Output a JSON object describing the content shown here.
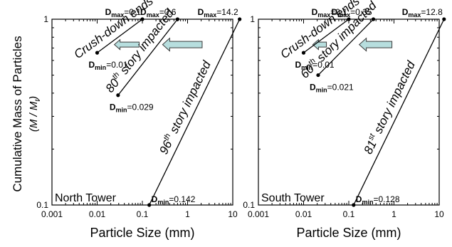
{
  "colors": {
    "arrow_fill": "#b7dede",
    "arrow_stroke": "#3a3a3a",
    "ink": "#000000"
  },
  "y_axis_title": "Cumulative Mass of Particles",
  "y_axis_subtitle": "(M / M_t)",
  "chart_data": [
    {
      "type": "line",
      "scale": {
        "x": "log",
        "y": "log"
      },
      "xlim": [
        0.001,
        10
      ],
      "ylim": [
        0.1,
        1
      ],
      "xticks": [
        "0.001",
        "0.01",
        "0.1",
        "1",
        "10"
      ],
      "yticks": [
        "1",
        "0.1"
      ],
      "xlabel": "Particle Size (mm)",
      "panel_title": "North Tower",
      "series": [
        {
          "name": "Crush-down ends",
          "sup": "",
          "x": [
            0.01,
            0.1
          ],
          "y": [
            0.66,
            1.0
          ],
          "dmin": "0.01",
          "dmax": "0.1"
        },
        {
          "name": "80th story impacted",
          "base": "80",
          "sup": "th",
          "rest": " story impacted",
          "x": [
            0.029,
            0.6
          ],
          "y": [
            0.39,
            1.0
          ],
          "dmin": "0.029",
          "dmax": "0.6"
        },
        {
          "name": "96th story impacted",
          "base": "96",
          "sup": "th",
          "rest": " story impacted",
          "x": [
            0.142,
            14.2
          ],
          "y": [
            0.1,
            1.0
          ],
          "dmin": "0.142",
          "dmax": "14.2"
        }
      ],
      "arrows": [
        {
          "x_from": 0.085,
          "x_to": 0.024,
          "y": 0.73,
          "size": "small"
        },
        {
          "x_from": 2.1,
          "x_to": 0.28,
          "y": 0.73,
          "size": "large"
        }
      ]
    },
    {
      "type": "line",
      "scale": {
        "x": "log",
        "y": "log"
      },
      "xlim": [
        0.001,
        10
      ],
      "ylim": [
        0.1,
        1
      ],
      "xticks": [
        "0.001",
        "0.01",
        "0.1",
        "1",
        "10"
      ],
      "yticks": [
        "1",
        "0.1"
      ],
      "xlabel": "Particle Size (mm)",
      "panel_title": "South Tower",
      "series": [
        {
          "name": "Crush-down ends",
          "sup": "",
          "x": [
            0.01,
            0.1
          ],
          "y": [
            0.66,
            1.0
          ],
          "dmin": "0.01",
          "dmax": "0.1"
        },
        {
          "name": "60th story impacted",
          "base": "60",
          "sup": "th",
          "rest": " story impacted",
          "x": [
            0.021,
            0.35
          ],
          "y": [
            0.5,
            1.0
          ],
          "dmin": "0.021",
          "dmax": "0.35"
        },
        {
          "name": "81st story impacted",
          "base": "81",
          "sup": "st",
          "rest": " story impacted",
          "x": [
            0.128,
            12.8
          ],
          "y": [
            0.1,
            1.0
          ],
          "dmin": "0.128",
          "dmax": "12.8"
        }
      ],
      "arrows": [
        {
          "x_from": 0.032,
          "x_to": 0.016,
          "y": 0.73,
          "size": "small"
        },
        {
          "x_from": 0.9,
          "x_to": 0.17,
          "y": 0.73,
          "size": "large"
        }
      ]
    }
  ]
}
